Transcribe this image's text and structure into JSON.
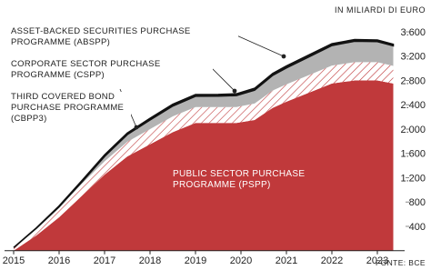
{
  "chart_data": {
    "type": "stacked-area",
    "unit_label": "IN MILIARDI DI EURO",
    "source": "FONTE: BCE",
    "x": [
      2015.0,
      2015.5,
      2016.0,
      2016.5,
      2017.0,
      2017.5,
      2018.0,
      2018.5,
      2019.0,
      2019.5,
      2019.9,
      2020.3,
      2020.7,
      2021.0,
      2021.5,
      2022.0,
      2022.5,
      2023.0,
      2023.35
    ],
    "series": [
      {
        "name": "PUBLIC SECTOR PURCHASE PROGRAMME (PSPP)",
        "color": "#c0393b",
        "hatch": false,
        "values": [
          0,
          250,
          550,
          900,
          1250,
          1550,
          1750,
          1950,
          2100,
          2100,
          2100,
          2150,
          2350,
          2450,
          2600,
          2750,
          2800,
          2800,
          2750
        ]
      },
      {
        "name": "THIRD COVERED BOND PURCHASE PROGRAMME (CBPP3)",
        "color": "#c0393b",
        "hatch": true,
        "values": [
          50,
          120,
          170,
          200,
          220,
          240,
          250,
          260,
          262,
          262,
          262,
          270,
          285,
          287,
          290,
          295,
          300,
          300,
          290
        ]
      },
      {
        "name": "CORPORATE SECTOR PURCHASE PROGRAMME (CSPP)",
        "color": "#b3b3b3",
        "hatch": false,
        "values": [
          0,
          0,
          0,
          30,
          80,
          120,
          150,
          170,
          178,
          180,
          190,
          220,
          250,
          270,
          300,
          330,
          345,
          340,
          330
        ]
      },
      {
        "name": "ASSET-BACKED SECURITIES PURCHASE PROGRAMME (ABSPP)",
        "color": "#2b2b2b",
        "hatch": false,
        "values": [
          0,
          5,
          15,
          20,
          25,
          25,
          27,
          28,
          27,
          27,
          28,
          30,
          30,
          30,
          30,
          28,
          27,
          25,
          24
        ]
      }
    ],
    "xlim": [
      2014.8,
      2023.6
    ],
    "xticks": [
      2015,
      2016,
      2017,
      2018,
      2019,
      2020,
      2021,
      2022,
      2023
    ],
    "ylim": [
      0,
      3700
    ],
    "yticks": [
      400,
      {
        "value": 800,
        "label": "800"
      },
      {
        "value": 1200,
        "label": "1.200"
      },
      {
        "value": 1600,
        "label": "1.600"
      },
      {
        "value": 2000,
        "label": "2.000"
      },
      {
        "value": 2400,
        "label": "2.400"
      },
      {
        "value": 2800,
        "label": "2.800"
      },
      {
        "value": 3200,
        "label": "3.200"
      },
      {
        "value": 3600,
        "label": "3.600"
      }
    ],
    "grid": false
  }
}
